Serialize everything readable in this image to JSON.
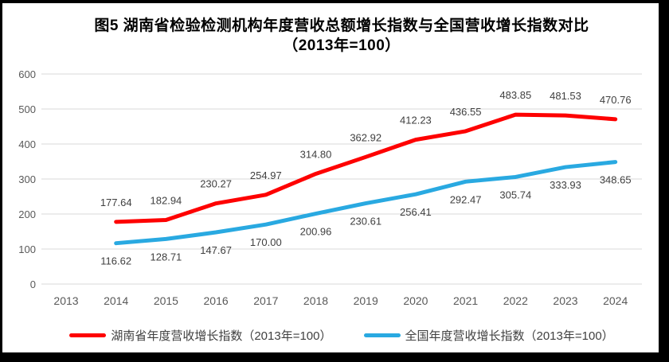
{
  "title": {
    "line1": "图5 湖南省检验检测机构年度营收总额增长指数与全国营收增长指数对比",
    "line2": "（2013年=100）"
  },
  "colors": {
    "background": "#FFFFFF",
    "frame": "#000000",
    "gridline": "#D9D9D9",
    "tick_label": "#595959",
    "data_label": "#3F3F3F",
    "hunan_series": "#FE0000",
    "national_series": "#29A9E1"
  },
  "chart_data": {
    "type": "line",
    "title": "图5 湖南省检验检测机构年度营收总额增长指数与全国营收增长指数对比（2013年=100）",
    "categories": [
      "2013",
      "2014",
      "2015",
      "2016",
      "2017",
      "2018",
      "2019",
      "2020",
      "2021",
      "2022",
      "2023",
      "2024"
    ],
    "series": [
      {
        "name": "湖南省年度营收增长指数（2013年=100）",
        "color": "#FE0000",
        "label_side": "above",
        "values": [
          null,
          177.64,
          182.94,
          230.27,
          254.97,
          314.8,
          362.92,
          412.23,
          436.55,
          483.85,
          481.53,
          470.76
        ]
      },
      {
        "name": "全国年度营收增长指数（2013年=100）",
        "color": "#29A9E1",
        "label_side": "below",
        "values": [
          null,
          116.62,
          128.71,
          147.67,
          170.0,
          200.96,
          230.61,
          256.41,
          292.47,
          305.74,
          333.93,
          348.65
        ]
      }
    ],
    "xlabel": "",
    "ylabel": "",
    "ylim": [
      0,
      600
    ],
    "ytick_step": 100,
    "grid": true,
    "data_labels": true,
    "legend_position": "bottom"
  }
}
